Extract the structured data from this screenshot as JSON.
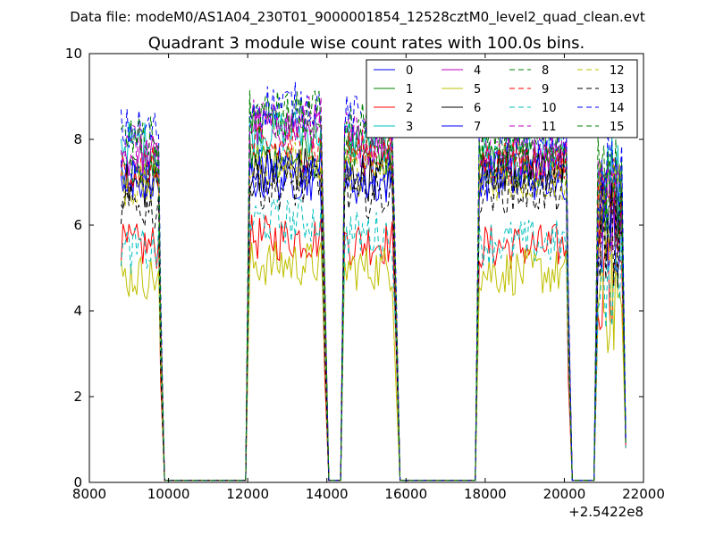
{
  "chart_data": {
    "type": "line",
    "suptitle": "Data file: modeM0/AS1A04_230T01_9000001854_12528cztM0_level2_quad_clean.evt",
    "title": "Quadrant 3 module wise count rates with 100.0s bins.",
    "xlabel": "",
    "ylabel": "",
    "x_offset_label": "+2.5422e8",
    "xlim": [
      8000,
      22000
    ],
    "ylim": [
      0,
      10
    ],
    "x_ticks": [
      8000,
      10000,
      12000,
      14000,
      16000,
      18000,
      20000,
      22000
    ],
    "y_ticks": [
      0,
      2,
      4,
      6,
      8,
      10
    ],
    "x_tick_labels": [
      "8000",
      "10000",
      "12000",
      "14000",
      "16000",
      "18000",
      "20000",
      "22000"
    ],
    "y_tick_labels": [
      "0",
      "2",
      "4",
      "6",
      "8",
      "10"
    ],
    "grid": false,
    "legend_position": "top-right",
    "legend_columns": 4,
    "segments": [
      {
        "start": 8800,
        "end": 9750,
        "drop": 9900
      },
      {
        "start": 12050,
        "end": 13850,
        "drop": 14050
      },
      {
        "start": 14450,
        "end": 15650,
        "drop": 15850
      },
      {
        "start": 17850,
        "end": 20050,
        "drop": 20200
      },
      {
        "start": 20850,
        "end": 21450,
        "end_value_x": 21550
      }
    ],
    "series": [
      {
        "name": "0",
        "color": "#0000ff",
        "dash": false,
        "levels": [
          7.0,
          7.3,
          7.3,
          7.2,
          6.8
        ]
      },
      {
        "name": "1",
        "color": "#008000",
        "dash": false,
        "levels": [
          7.3,
          7.6,
          7.7,
          7.4,
          6.5
        ]
      },
      {
        "name": "2",
        "color": "#ff0000",
        "dash": false,
        "levels": [
          5.5,
          5.7,
          5.6,
          5.5,
          4.5
        ]
      },
      {
        "name": "3",
        "color": "#00bfbf",
        "dash": false,
        "levels": [
          7.9,
          8.2,
          8.0,
          7.7,
          6.8
        ]
      },
      {
        "name": "4",
        "color": "#bf00bf",
        "dash": false,
        "levels": [
          7.6,
          8.3,
          7.9,
          7.6,
          6.6
        ]
      },
      {
        "name": "5",
        "color": "#bfbf00",
        "dash": false,
        "levels": [
          4.8,
          5.1,
          5.0,
          4.9,
          4.2
        ]
      },
      {
        "name": "6",
        "color": "#000000",
        "dash": false,
        "levels": [
          6.9,
          7.3,
          7.1,
          7.3,
          6.0
        ]
      },
      {
        "name": "7",
        "color": "#0000ff",
        "dash": false,
        "levels": [
          7.0,
          7.1,
          7.0,
          7.1,
          6.1
        ]
      },
      {
        "name": "8",
        "color": "#008000",
        "dash": true,
        "levels": [
          7.5,
          8.4,
          7.8,
          7.6,
          6.4
        ]
      },
      {
        "name": "9",
        "color": "#ff0000",
        "dash": true,
        "levels": [
          7.3,
          7.8,
          7.7,
          7.5,
          6.4
        ]
      },
      {
        "name": "10",
        "color": "#00bfbf",
        "dash": true,
        "levels": [
          5.4,
          6.1,
          5.8,
          5.6,
          4.6
        ]
      },
      {
        "name": "11",
        "color": "#bf00bf",
        "dash": true,
        "levels": [
          7.9,
          8.5,
          8.1,
          7.9,
          6.8
        ]
      },
      {
        "name": "12",
        "color": "#bfbf00",
        "dash": true,
        "levels": [
          6.9,
          7.4,
          7.2,
          7.1,
          6.2
        ]
      },
      {
        "name": "13",
        "color": "#000000",
        "dash": true,
        "levels": [
          6.4,
          6.9,
          6.7,
          6.8,
          5.8
        ]
      },
      {
        "name": "14",
        "color": "#0000ff",
        "dash": true,
        "levels": [
          8.2,
          8.8,
          8.5,
          8.2,
          7.0
        ]
      },
      {
        "name": "15",
        "color": "#008000",
        "dash": true,
        "levels": [
          8.0,
          8.6,
          8.3,
          8.0,
          6.9
        ]
      }
    ]
  }
}
